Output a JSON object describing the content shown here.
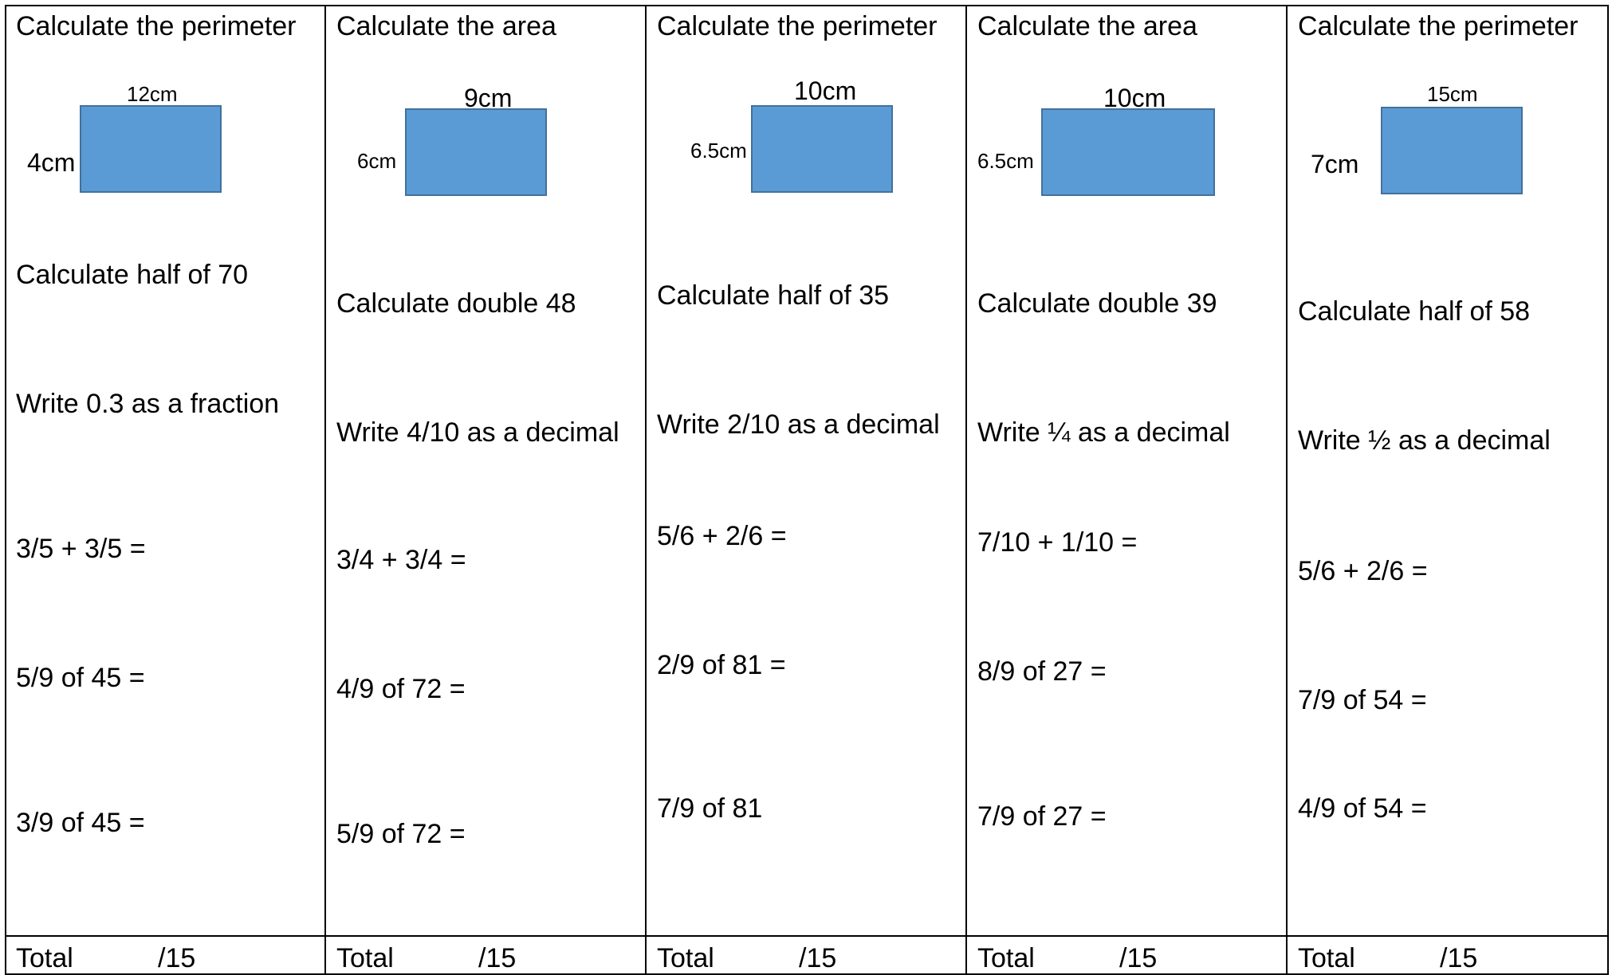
{
  "columns": [
    {
      "heading": "Calculate the perimeter",
      "width_label": "12cm",
      "height_label": "4cm",
      "questions": [
        "Calculate half of 70",
        "Write 0.3 as a fraction",
        "3/5 + 3/5 =",
        "5/9 of 45 =",
        "3/9 of 45 ="
      ],
      "total_label": "Total",
      "total_max": "/15"
    },
    {
      "heading": "Calculate the area",
      "width_label": "9cm",
      "height_label": "6cm",
      "questions": [
        "Calculate double 48",
        "Write 4/10 as a decimal",
        "3/4 + 3/4 =",
        "4/9 of 72 =",
        "5/9 of 72 ="
      ],
      "total_label": "Total",
      "total_max": "/15"
    },
    {
      "heading": "Calculate the perimeter",
      "width_label": "10cm",
      "height_label": "6.5cm",
      "questions": [
        "Calculate half of 35",
        "Write 2/10 as a decimal",
        "5/6 + 2/6 =",
        "2/9 of 81 =",
        "7/9 of 81"
      ],
      "total_label": "Total",
      "total_max": "/15"
    },
    {
      "heading": "Calculate the area",
      "width_label": "10cm",
      "height_label": "6.5cm",
      "questions": [
        "Calculate double 39",
        "Write ¼ as a decimal",
        "7/10  + 1/10 =",
        "8/9 of 27 =",
        "7/9 of 27 ="
      ],
      "total_label": "Total",
      "total_max": "/15"
    },
    {
      "heading": "Calculate the perimeter",
      "width_label": "15cm",
      "height_label": "7cm",
      "questions": [
        "Calculate half of 58",
        "Write ½ as a decimal",
        "5/6 + 2/6 =",
        "7/9 of 54 =",
        "4/9 of 54 ="
      ],
      "total_label": "Total",
      "total_max": "/15"
    }
  ],
  "colors": {
    "shape_fill": "#5b9bd5",
    "shape_border": "#41719c",
    "grid": "#000000"
  }
}
